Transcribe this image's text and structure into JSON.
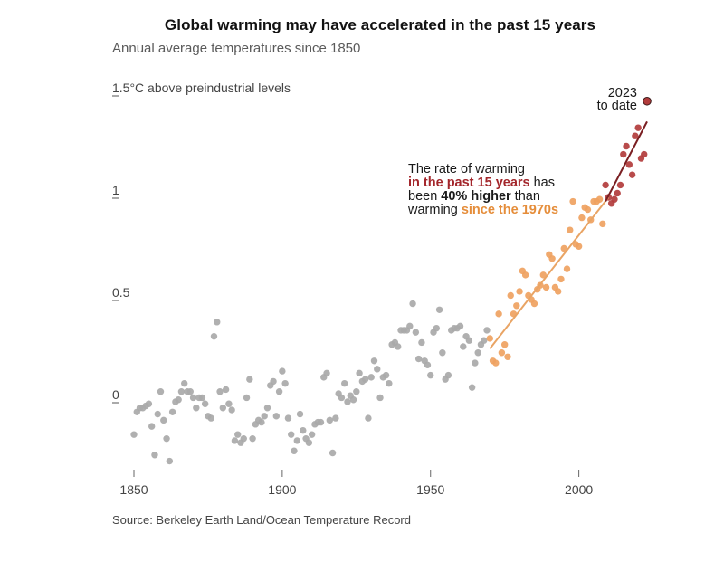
{
  "chart_data": {
    "type": "scatter",
    "title": "Global warming may have accelerated in the past 15 years",
    "subtitle": "Annual average temperatures since 1850",
    "source": "Source: Berkeley Earth Land/Ocean Temperature Record",
    "xlim": [
      1850,
      2023
    ],
    "ylim": [
      -0.3,
      1.5
    ],
    "x_ticks": [
      1850,
      1900,
      1950,
      2000
    ],
    "y_ticks": [
      {
        "value": 0,
        "label": "0"
      },
      {
        "value": 0.5,
        "label": "0.5"
      },
      {
        "value": 1,
        "label": "1"
      },
      {
        "value": 1.5,
        "label": "1.5°C above preindustrial levels"
      }
    ],
    "colors": {
      "early": "#a9a9a9",
      "recent": "#efa261",
      "latest": "#b23c3c",
      "trend_recent": "#e9a464",
      "trend_latest": "#7a1f22"
    },
    "series": [
      {
        "color": "early",
        "points": [
          [
            1850,
            -0.16
          ],
          [
            1851,
            -0.05
          ],
          [
            1852,
            -0.03
          ],
          [
            1853,
            -0.03
          ],
          [
            1854,
            -0.02
          ],
          [
            1855,
            -0.01
          ],
          [
            1856,
            -0.12
          ],
          [
            1857,
            -0.26
          ],
          [
            1858,
            -0.06
          ],
          [
            1859,
            0.05
          ],
          [
            1860,
            -0.09
          ],
          [
            1861,
            -0.18
          ],
          [
            1862,
            -0.29
          ],
          [
            1863,
            -0.05
          ],
          [
            1864,
            0.0
          ],
          [
            1865,
            0.01
          ],
          [
            1866,
            0.05
          ],
          [
            1867,
            0.09
          ],
          [
            1868,
            0.05
          ],
          [
            1869,
            0.05
          ],
          [
            1870,
            0.02
          ],
          [
            1871,
            -0.03
          ],
          [
            1872,
            0.02
          ],
          [
            1873,
            0.02
          ],
          [
            1874,
            -0.01
          ],
          [
            1875,
            -0.07
          ],
          [
            1876,
            -0.08
          ],
          [
            1877,
            0.32
          ],
          [
            1878,
            0.39
          ],
          [
            1879,
            0.05
          ],
          [
            1880,
            -0.03
          ],
          [
            1881,
            0.06
          ],
          [
            1882,
            -0.01
          ],
          [
            1883,
            -0.04
          ],
          [
            1884,
            -0.19
          ],
          [
            1885,
            -0.16
          ],
          [
            1886,
            -0.2
          ],
          [
            1887,
            -0.18
          ],
          [
            1888,
            0.02
          ],
          [
            1889,
            0.11
          ],
          [
            1890,
            -0.18
          ],
          [
            1891,
            -0.11
          ],
          [
            1892,
            -0.09
          ],
          [
            1893,
            -0.1
          ],
          [
            1894,
            -0.07
          ],
          [
            1895,
            -0.03
          ],
          [
            1896,
            0.08
          ],
          [
            1897,
            0.1
          ],
          [
            1898,
            -0.07
          ],
          [
            1899,
            0.05
          ],
          [
            1900,
            0.15
          ],
          [
            1901,
            0.09
          ],
          [
            1902,
            -0.08
          ],
          [
            1903,
            -0.16
          ],
          [
            1904,
            -0.24
          ],
          [
            1905,
            -0.19
          ],
          [
            1906,
            -0.06
          ],
          [
            1907,
            -0.14
          ],
          [
            1908,
            -0.18
          ],
          [
            1909,
            -0.2
          ],
          [
            1910,
            -0.16
          ],
          [
            1911,
            -0.11
          ],
          [
            1912,
            -0.1
          ],
          [
            1913,
            -0.1
          ],
          [
            1914,
            0.12
          ],
          [
            1915,
            0.14
          ],
          [
            1916,
            -0.09
          ],
          [
            1917,
            -0.25
          ],
          [
            1918,
            -0.08
          ],
          [
            1919,
            0.04
          ],
          [
            1920,
            0.02
          ],
          [
            1921,
            0.09
          ],
          [
            1922,
            0.0
          ],
          [
            1923,
            0.03
          ],
          [
            1924,
            0.01
          ],
          [
            1925,
            0.05
          ],
          [
            1926,
            0.14
          ],
          [
            1927,
            0.1
          ],
          [
            1928,
            0.11
          ],
          [
            1929,
            -0.08
          ],
          [
            1930,
            0.12
          ],
          [
            1931,
            0.2
          ],
          [
            1932,
            0.16
          ],
          [
            1933,
            0.02
          ],
          [
            1934,
            0.12
          ],
          [
            1935,
            0.13
          ],
          [
            1936,
            0.09
          ],
          [
            1937,
            0.28
          ],
          [
            1938,
            0.29
          ],
          [
            1939,
            0.27
          ],
          [
            1940,
            0.35
          ],
          [
            1941,
            0.35
          ],
          [
            1942,
            0.35
          ],
          [
            1943,
            0.37
          ],
          [
            1944,
            0.48
          ],
          [
            1945,
            0.34
          ],
          [
            1946,
            0.21
          ],
          [
            1947,
            0.29
          ],
          [
            1948,
            0.2
          ],
          [
            1949,
            0.18
          ],
          [
            1950,
            0.13
          ],
          [
            1951,
            0.34
          ],
          [
            1952,
            0.36
          ],
          [
            1953,
            0.45
          ],
          [
            1954,
            0.24
          ],
          [
            1955,
            0.11
          ],
          [
            1956,
            0.13
          ],
          [
            1957,
            0.35
          ],
          [
            1958,
            0.36
          ],
          [
            1959,
            0.36
          ],
          [
            1960,
            0.37
          ],
          [
            1961,
            0.27
          ],
          [
            1962,
            0.32
          ],
          [
            1963,
            0.3
          ],
          [
            1964,
            0.07
          ],
          [
            1965,
            0.19
          ],
          [
            1966,
            0.24
          ],
          [
            1967,
            0.28
          ],
          [
            1968,
            0.3
          ],
          [
            1969,
            0.35
          ]
        ]
      },
      {
        "color": "recent",
        "points": [
          [
            1970,
            0.31
          ],
          [
            1971,
            0.2
          ],
          [
            1972,
            0.19
          ],
          [
            1973,
            0.43
          ],
          [
            1974,
            0.24
          ],
          [
            1975,
            0.28
          ],
          [
            1976,
            0.22
          ],
          [
            1977,
            0.52
          ],
          [
            1978,
            0.43
          ],
          [
            1979,
            0.47
          ],
          [
            1980,
            0.54
          ],
          [
            1981,
            0.64
          ],
          [
            1982,
            0.62
          ],
          [
            1983,
            0.52
          ],
          [
            1984,
            0.5
          ],
          [
            1985,
            0.48
          ],
          [
            1986,
            0.55
          ],
          [
            1987,
            0.57
          ],
          [
            1988,
            0.62
          ],
          [
            1989,
            0.56
          ],
          [
            1990,
            0.72
          ],
          [
            1991,
            0.7
          ],
          [
            1992,
            0.56
          ],
          [
            1993,
            0.54
          ],
          [
            1994,
            0.6
          ],
          [
            1995,
            0.75
          ],
          [
            1996,
            0.65
          ],
          [
            1997,
            0.84
          ],
          [
            1998,
            0.98
          ],
          [
            1999,
            0.77
          ],
          [
            2000,
            0.76
          ],
          [
            2001,
            0.9
          ],
          [
            2002,
            0.95
          ],
          [
            2003,
            0.94
          ],
          [
            2004,
            0.89
          ],
          [
            2005,
            0.98
          ],
          [
            2006,
            0.98
          ],
          [
            2007,
            0.99
          ],
          [
            2008,
            0.87
          ]
        ]
      },
      {
        "color": "latest",
        "points": [
          [
            2009,
            1.06
          ],
          [
            2010,
            1.0
          ],
          [
            2011,
            0.97
          ],
          [
            2012,
            0.99
          ],
          [
            2013,
            1.02
          ],
          [
            2014,
            1.06
          ],
          [
            2015,
            1.21
          ],
          [
            2016,
            1.25
          ],
          [
            2017,
            1.16
          ],
          [
            2018,
            1.11
          ],
          [
            2019,
            1.3
          ],
          [
            2020,
            1.34
          ],
          [
            2021,
            1.19
          ],
          [
            2022,
            1.21
          ],
          [
            2023,
            1.47
          ]
        ]
      }
    ],
    "trend_lines": [
      {
        "color": "trend_recent",
        "from": [
          1970,
          0.26
        ],
        "to": [
          2010,
          1.0
        ]
      },
      {
        "color": "trend_latest",
        "from": [
          2009,
          0.98
        ],
        "to": [
          2023,
          1.37
        ]
      }
    ],
    "annotations": {
      "year_label_line1": "2023",
      "year_label_line2": "to date",
      "rate_line1": "The rate of warming",
      "rate_line2_red": "in the past 15 years",
      "rate_line2_rest": " has",
      "rate_line3_pre": "been ",
      "rate_line3_bold": "40% higher",
      "rate_line3_rest": " than",
      "rate_line4_pre": "warming ",
      "rate_line4_orange": "since the 1970s"
    }
  }
}
